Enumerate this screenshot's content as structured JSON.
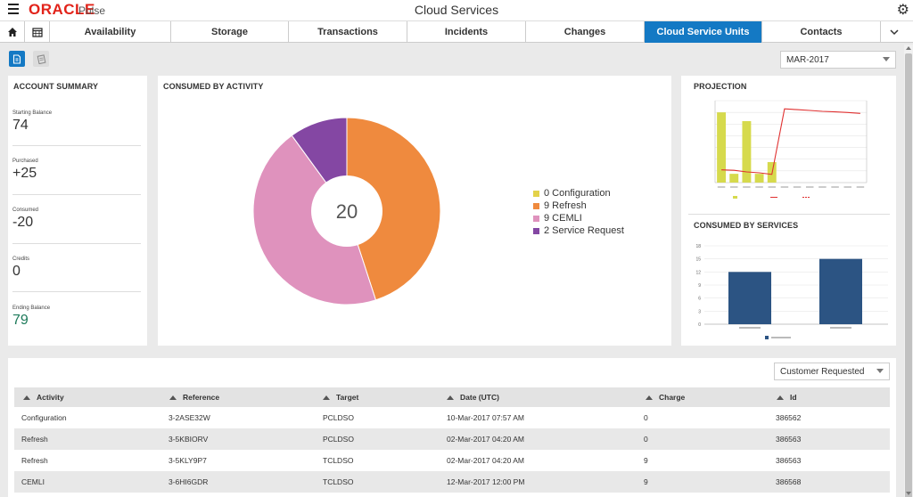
{
  "header": {
    "logo": "ORACLE",
    "logo_sub": "Pulse",
    "title": "Cloud Services"
  },
  "tabs": [
    {
      "label": "Availability"
    },
    {
      "label": "Storage"
    },
    {
      "label": "Transactions"
    },
    {
      "label": "Incidents"
    },
    {
      "label": "Changes"
    },
    {
      "label": "Cloud Service Units",
      "active": true
    },
    {
      "label": "Contacts"
    }
  ],
  "period_select": {
    "value": "MAR-2017"
  },
  "account_summary": {
    "title": "ACCOUNT SUMMARY",
    "items": [
      {
        "label": "Starting Balance",
        "value": "74"
      },
      {
        "label": "Purchased",
        "value": "+25"
      },
      {
        "label": "Consumed",
        "value": "-20"
      },
      {
        "label": "Credits",
        "value": "0"
      },
      {
        "label": "Ending Balance",
        "value": "79"
      }
    ]
  },
  "consumed_by_activity": {
    "title": "CONSUMED BY ACTIVITY",
    "total": "20",
    "legend": [
      {
        "label": "0 Configuration",
        "color": "#e3d24a"
      },
      {
        "label": "9 Refresh",
        "color": "#ef8a3e"
      },
      {
        "label": "9 CEMLI",
        "color": "#df92bd"
      },
      {
        "label": "2 Service Request",
        "color": "#8447a3"
      }
    ]
  },
  "projection": {
    "title": "PROJECTION"
  },
  "consumed_by_services": {
    "title": "CONSUMED BY SERVICES"
  },
  "chart_data": [
    {
      "type": "pie",
      "title": "CONSUMED BY ACTIVITY",
      "center_label": "20",
      "categories": [
        "Configuration",
        "Refresh",
        "CEMLI",
        "Service Request"
      ],
      "values": [
        0,
        9,
        9,
        2
      ],
      "colors": [
        "#e3d24a",
        "#ef8a3e",
        "#df92bd",
        "#8447a3"
      ]
    },
    {
      "type": "bar",
      "title": "PROJECTION",
      "categories": [
        "p1",
        "p2",
        "p3",
        "p4",
        "p5",
        "p6",
        "p7",
        "p8",
        "p9",
        "p10",
        "p11",
        "p12"
      ],
      "values": [
        24,
        3,
        21,
        3,
        7,
        0,
        0,
        0,
        0,
        0,
        0,
        0
      ],
      "ylim": [
        0,
        28
      ],
      "line_series": [
        {
          "name": "Balance",
          "color": "#e03030",
          "values": [
            62,
            60,
            52,
            48,
            40,
            360,
            356,
            352,
            348,
            345,
            342,
            338
          ]
        }
      ],
      "line_ylim": [
        0,
        400
      ]
    },
    {
      "type": "bar",
      "title": "CONSUMED BY SERVICES",
      "categories": [
        "s1",
        "s2"
      ],
      "values": [
        12,
        15
      ],
      "ylim": [
        0,
        18
      ],
      "yticks": [
        "0",
        "3",
        "6",
        "9",
        "12",
        "15",
        "18"
      ],
      "color": "#2c5483"
    }
  ],
  "table": {
    "filter": "Customer Requested",
    "columns": [
      "Activity",
      "Reference",
      "Target",
      "Date (UTC)",
      "Charge",
      "Id"
    ],
    "rows": [
      [
        "Configuration",
        "3-2ASE32W",
        "PCLDSO",
        "10-Mar-2017 07:57 AM",
        "0",
        "386562"
      ],
      [
        "Refresh",
        "3-5KBIORV",
        "PCLDSO",
        "02-Mar-2017 04:20 AM",
        "0",
        "386563"
      ],
      [
        "Refresh",
        "3-5KLY9P7",
        "TCLDSO",
        "02-Mar-2017 04:20 AM",
        "9",
        "386563"
      ],
      [
        "CEMLI",
        "3-6HI6GDR",
        "TCLDSO",
        "12-Mar-2017 12:00 PM",
        "9",
        "386568"
      ]
    ]
  }
}
